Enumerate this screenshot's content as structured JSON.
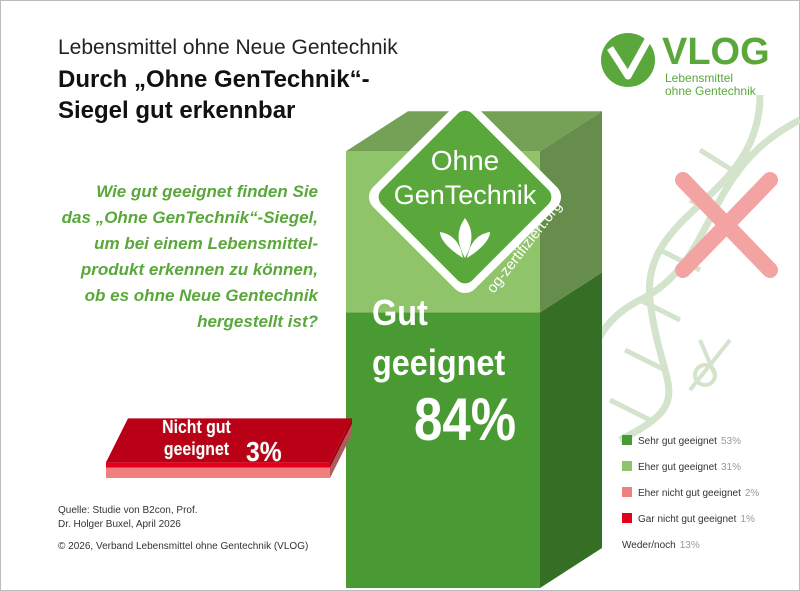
{
  "chart_data": {
    "type": "stacked-bar-3d",
    "subtitle": "Lebensmittel ohne Neue Gentechnik",
    "title_lines": [
      "Durch „Ohne GenTechnik“-",
      "Siegel gut erkennbar"
    ],
    "question_lines": [
      "Wie gut geeignet finden Sie",
      "das „Ohne GenTechnik“-Siegel,",
      "um bei einem Lebensmittel-",
      "produkt erkennen zu können,",
      "ob es ohne Neue Gentechnik",
      "hergestellt ist?"
    ],
    "categories": [
      "Gut geeignet",
      "Nicht gut geeignet"
    ],
    "series": [
      {
        "name": "Sehr gut geeignet",
        "color": "#4a9a34",
        "values": [
          53,
          null
        ],
        "value_labels": [
          "53%",
          null
        ]
      },
      {
        "name": "Eher gut geeignet",
        "color": "#8fc46a",
        "values": [
          31,
          null
        ],
        "value_labels": [
          "31%",
          null
        ]
      },
      {
        "name": "Eher nicht gut geeignet",
        "color": "#f08080",
        "values": [
          null,
          2
        ],
        "value_labels": [
          null,
          "2%"
        ]
      },
      {
        "name": "Gar nicht gut geeignet",
        "color": "#e3001b",
        "values": [
          null,
          1
        ],
        "value_labels": [
          null,
          "1%"
        ]
      }
    ],
    "totals": [
      {
        "value": 84,
        "label": "84%"
      },
      {
        "value": 3,
        "label": "3%"
      }
    ],
    "other": {
      "name": "Weder/noch",
      "value": 13,
      "label": "13%"
    },
    "seal_lines": [
      "Ohne",
      "GenTechnik"
    ],
    "seal_url": "og-zertifiziert.org",
    "logo": "VLOG",
    "logo_tagline": [
      "Lebensmittel",
      "ohne Gentechnik"
    ],
    "source_lines": [
      "Quelle: Studie von B2con, Prof.",
      "Dr. Holger Buxel, April 2026"
    ],
    "copyright": "© 2026, Verband  Lebensmittel  ohne Gentechnik  (VLOG)"
  }
}
